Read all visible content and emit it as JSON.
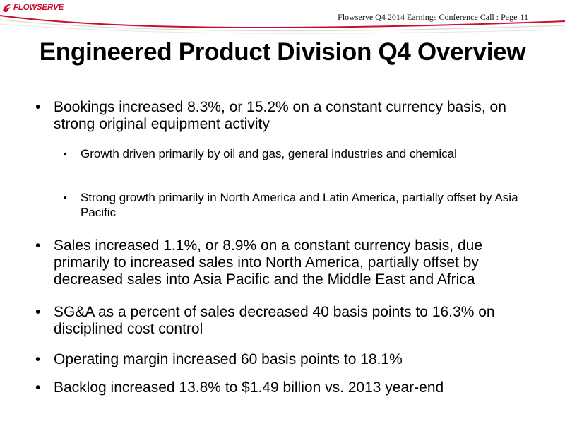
{
  "header": {
    "logo_text": "FLOWSERVE",
    "page_reference": "Flowserve Q4 2014 Earnings Conference Call  : Page",
    "page_number": "11",
    "accent_color": "#c8102e"
  },
  "title": "Engineered Product Division Q4 Overview",
  "bullets": [
    {
      "level": 1,
      "text": "Bookings increased 8.3%, or 15.2% on a constant currency basis, on strong original equipment activity"
    },
    {
      "level": 2,
      "text": "Growth driven primarily by oil and gas, general industries and chemical"
    },
    {
      "level": 2,
      "text": "Strong growth primarily in North America and Latin America, partially offset by Asia Pacific"
    },
    {
      "level": 1,
      "text": "Sales increased 1.1%, or 8.9% on a constant currency basis, due primarily to increased sales into North America, partially offset by decreased sales into Asia Pacific and the Middle East and Africa"
    },
    {
      "level": 1,
      "text": "SG&A as a percent of sales decreased 40 basis points to 16.3% on disciplined cost control"
    },
    {
      "level": 1,
      "text": "Operating margin increased 60 basis points to 18.1%"
    },
    {
      "level": 1,
      "text": "Backlog increased 13.8% to $1.49 billion vs. 2013 year-end"
    }
  ]
}
